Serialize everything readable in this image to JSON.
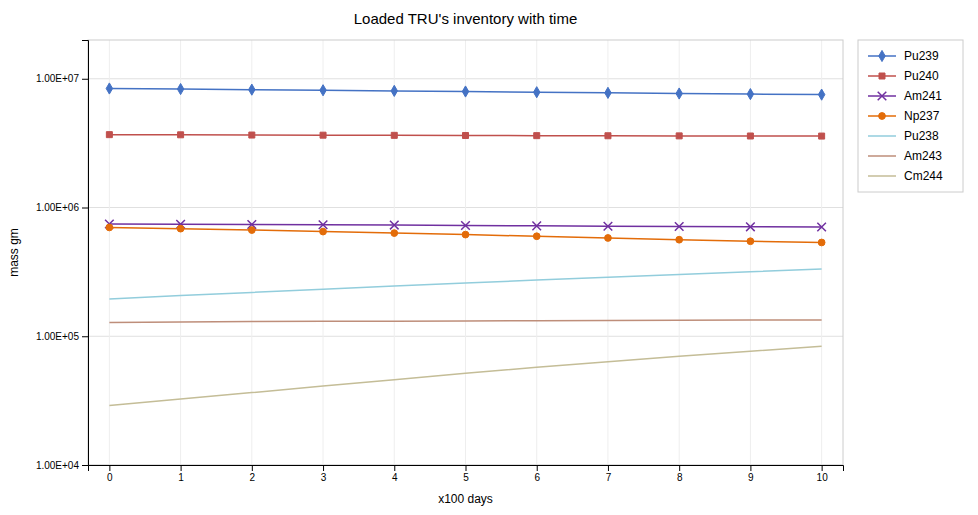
{
  "chart_data": {
    "type": "line",
    "title": "Loaded TRU's inventory with time",
    "xlabel": "x100 days",
    "ylabel": "mass gm",
    "x": [
      0,
      1,
      2,
      3,
      4,
      5,
      6,
      7,
      8,
      9,
      10
    ],
    "series": [
      {
        "name": "Pu239",
        "color": "#4472C4",
        "marker": "diamond",
        "values": [
          8400000,
          8320000,
          8230000,
          8140000,
          8050000,
          7960000,
          7860000,
          7770000,
          7680000,
          7600000,
          7530000
        ]
      },
      {
        "name": "Pu240",
        "color": "#C0504D",
        "marker": "square",
        "values": [
          3680000,
          3670000,
          3655000,
          3645000,
          3635000,
          3625000,
          3615000,
          3608000,
          3600000,
          3593000,
          3588000
        ]
      },
      {
        "name": "Am241",
        "color": "#7030A0",
        "marker": "x",
        "values": [
          745000,
          740000,
          738000,
          735000,
          730000,
          725000,
          720000,
          715000,
          712000,
          708000,
          706000
        ]
      },
      {
        "name": "Np237",
        "color": "#E36C09",
        "marker": "circle",
        "values": [
          700000,
          685000,
          668000,
          650000,
          633000,
          616000,
          598000,
          580000,
          562000,
          547000,
          535000
        ]
      },
      {
        "name": "Pu238",
        "color": "#92CDDC",
        "values": [
          195000,
          207000,
          219000,
          232000,
          246000,
          259000,
          273000,
          287000,
          302000,
          317000,
          333000
        ]
      },
      {
        "name": "Am243",
        "color": "#BE8E7A",
        "values": [
          128000,
          129000,
          130000,
          130500,
          131000,
          131500,
          132000,
          132500,
          133000,
          133500,
          134000
        ]
      },
      {
        "name": "Cm244",
        "color": "#C4BD97",
        "values": [
          29000,
          32500,
          36500,
          41000,
          46000,
          51500,
          57500,
          63500,
          70000,
          76500,
          83500
        ]
      }
    ],
    "xlim": [
      -0.3,
      10.3
    ],
    "xticks": [
      0,
      1,
      2,
      3,
      4,
      5,
      6,
      7,
      8,
      9,
      10
    ],
    "ylim": [
      10000,
      20000000
    ],
    "yticks": [
      {
        "value": 10000,
        "label": "1.00E+04"
      },
      {
        "value": 100000,
        "label": "1.00E+05"
      },
      {
        "value": 1000000,
        "label": "1.00E+06"
      },
      {
        "value": 10000000,
        "label": "1.00E+07"
      }
    ],
    "log": "y",
    "grid": true,
    "legend": "right"
  }
}
